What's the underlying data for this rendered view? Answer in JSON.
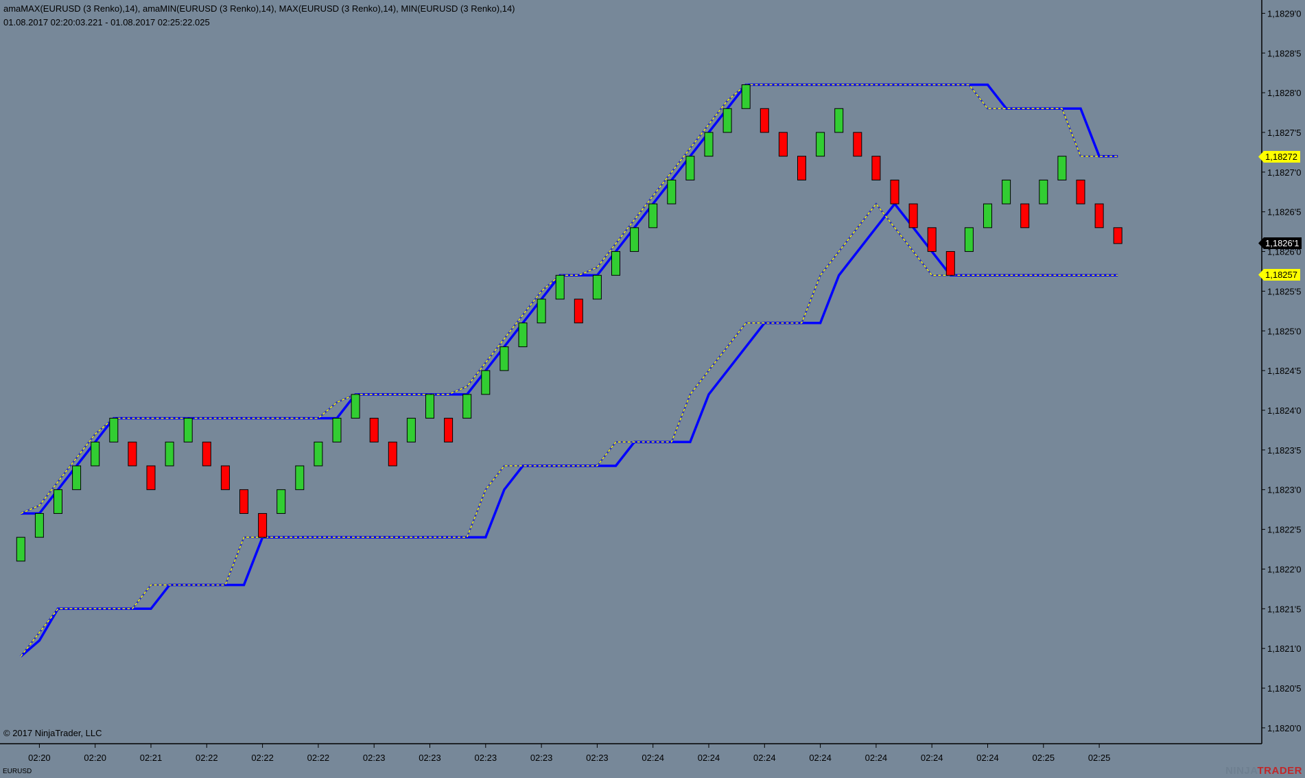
{
  "header": {
    "indicators": "amaMAX(EURUSD (3 Renko),14), amaMIN(EURUSD (3 Renko),14), MAX(EURUSD (3 Renko),14), MIN(EURUSD (3 Renko),14)",
    "range": "01.08.2017 02:20:03.221 - 01.08.2017 02:25:22.025"
  },
  "copyright": "© 2017 NinjaTrader, LLC",
  "instrument": "EURUSD",
  "logo": {
    "prefix": "NINJA",
    "suffix": "TRADER"
  },
  "colors": {
    "background": "#778899",
    "up": "#32CD32",
    "down": "#FF0000",
    "max_min": "#0000FF",
    "ama": "#FFFF00"
  },
  "price_tags": {
    "amaMax": "1,18272",
    "last": "1,1826'1",
    "amaMin": "1,18257"
  },
  "chart_data": {
    "type": "renko",
    "brick_size": 3e-05,
    "ylim": [
      1.18198,
      1.18292
    ],
    "y_ticks": [
      {
        "value": 1.1829,
        "label": "1,1829'0"
      },
      {
        "value": 1.18285,
        "label": "1,1828'5"
      },
      {
        "value": 1.1828,
        "label": "1,1828'0"
      },
      {
        "value": 1.18275,
        "label": "1,1827'5"
      },
      {
        "value": 1.1827,
        "label": "1,1827'0"
      },
      {
        "value": 1.18265,
        "label": "1,1826'5"
      },
      {
        "value": 1.1826,
        "label": "1,1826'0"
      },
      {
        "value": 1.18255,
        "label": "1,1825'5"
      },
      {
        "value": 1.1825,
        "label": "1,1825'0"
      },
      {
        "value": 1.18245,
        "label": "1,1824'5"
      },
      {
        "value": 1.1824,
        "label": "1,1824'0"
      },
      {
        "value": 1.18235,
        "label": "1,1823'5"
      },
      {
        "value": 1.1823,
        "label": "1,1823'0"
      },
      {
        "value": 1.18225,
        "label": "1,1822'5"
      },
      {
        "value": 1.1822,
        "label": "1,1822'0"
      },
      {
        "value": 1.18215,
        "label": "1,1821'5"
      },
      {
        "value": 1.1821,
        "label": "1,1821'0"
      },
      {
        "value": 1.18205,
        "label": "1,1820'5"
      },
      {
        "value": 1.182,
        "label": "1,1820'0"
      }
    ],
    "x_ticks": [
      {
        "bar": 1,
        "label": "02:20"
      },
      {
        "bar": 4,
        "label": "02:20"
      },
      {
        "bar": 7,
        "label": "02:21"
      },
      {
        "bar": 10,
        "label": "02:22"
      },
      {
        "bar": 13,
        "label": "02:22"
      },
      {
        "bar": 16,
        "label": "02:22"
      },
      {
        "bar": 19,
        "label": "02:23"
      },
      {
        "bar": 22,
        "label": "02:23"
      },
      {
        "bar": 25,
        "label": "02:23"
      },
      {
        "bar": 28,
        "label": "02:23"
      },
      {
        "bar": 31,
        "label": "02:23"
      },
      {
        "bar": 34,
        "label": "02:24"
      },
      {
        "bar": 37,
        "label": "02:24"
      },
      {
        "bar": 40,
        "label": "02:24"
      },
      {
        "bar": 43,
        "label": "02:24"
      },
      {
        "bar": 46,
        "label": "02:24"
      },
      {
        "bar": 49,
        "label": "02:24"
      },
      {
        "bar": 52,
        "label": "02:24"
      },
      {
        "bar": 55,
        "label": "02:25"
      },
      {
        "bar": 58,
        "label": "02:25"
      }
    ],
    "bricks": [
      [
        1.18221,
        1.18224
      ],
      [
        1.18224,
        1.18227
      ],
      [
        1.18227,
        1.1823
      ],
      [
        1.1823,
        1.18233
      ],
      [
        1.18233,
        1.18236
      ],
      [
        1.18236,
        1.18239
      ],
      [
        1.18236,
        1.18233
      ],
      [
        1.18233,
        1.1823
      ],
      [
        1.18233,
        1.18236
      ],
      [
        1.18236,
        1.18239
      ],
      [
        1.18236,
        1.18233
      ],
      [
        1.18233,
        1.1823
      ],
      [
        1.1823,
        1.18227
      ],
      [
        1.18227,
        1.18224
      ],
      [
        1.18227,
        1.1823
      ],
      [
        1.1823,
        1.18233
      ],
      [
        1.18233,
        1.18236
      ],
      [
        1.18236,
        1.18239
      ],
      [
        1.18239,
        1.18242
      ],
      [
        1.18239,
        1.18236
      ],
      [
        1.18236,
        1.18233
      ],
      [
        1.18236,
        1.18239
      ],
      [
        1.18239,
        1.18242
      ],
      [
        1.18239,
        1.18236
      ],
      [
        1.18239,
        1.18242
      ],
      [
        1.18242,
        1.18245
      ],
      [
        1.18245,
        1.18248
      ],
      [
        1.18248,
        1.18251
      ],
      [
        1.18251,
        1.18254
      ],
      [
        1.18254,
        1.18257
      ],
      [
        1.18254,
        1.18251
      ],
      [
        1.18254,
        1.18257
      ],
      [
        1.18257,
        1.1826
      ],
      [
        1.1826,
        1.18263
      ],
      [
        1.18263,
        1.18266
      ],
      [
        1.18266,
        1.18269
      ],
      [
        1.18269,
        1.18272
      ],
      [
        1.18272,
        1.18275
      ],
      [
        1.18275,
        1.18278
      ],
      [
        1.18278,
        1.18281
      ],
      [
        1.18278,
        1.18275
      ],
      [
        1.18275,
        1.18272
      ],
      [
        1.18272,
        1.18269
      ],
      [
        1.18272,
        1.18275
      ],
      [
        1.18275,
        1.18278
      ],
      [
        1.18275,
        1.18272
      ],
      [
        1.18272,
        1.18269
      ],
      [
        1.18269,
        1.18266
      ],
      [
        1.18266,
        1.18263
      ],
      [
        1.18263,
        1.1826
      ],
      [
        1.1826,
        1.18257
      ],
      [
        1.1826,
        1.18263
      ],
      [
        1.18263,
        1.18266
      ],
      [
        1.18266,
        1.18269
      ],
      [
        1.18266,
        1.18263
      ],
      [
        1.18266,
        1.18269
      ],
      [
        1.18269,
        1.18272
      ],
      [
        1.18269,
        1.18266
      ],
      [
        1.18266,
        1.18263
      ],
      [
        1.18263,
        1.18261
      ]
    ],
    "series": [
      {
        "name": "MAX(EURUSD (3 Renko),14)",
        "style": "solid",
        "values": [
          1.18227,
          1.18227,
          1.1823,
          1.18233,
          1.18236,
          1.18239,
          1.18239,
          1.18239,
          1.18239,
          1.18239,
          1.18239,
          1.18239,
          1.18239,
          1.18239,
          1.18239,
          1.18239,
          1.18239,
          1.18239,
          1.18242,
          1.18242,
          1.18242,
          1.18242,
          1.18242,
          1.18242,
          1.18242,
          1.18245,
          1.18248,
          1.18251,
          1.18254,
          1.18257,
          1.18257,
          1.18257,
          1.1826,
          1.18263,
          1.18266,
          1.18269,
          1.18272,
          1.18275,
          1.18278,
          1.18281,
          1.18281,
          1.18281,
          1.18281,
          1.18281,
          1.18281,
          1.18281,
          1.18281,
          1.18281,
          1.18281,
          1.18281,
          1.18281,
          1.18281,
          1.18281,
          1.18278,
          1.18278,
          1.18278,
          1.18278,
          1.18278,
          1.18272,
          1.18272
        ]
      },
      {
        "name": "amaMAX(EURUSD (3 Renko),14)",
        "style": "dashed",
        "values": [
          1.18227,
          1.18228,
          1.18231,
          1.18234,
          1.18237,
          1.18239,
          1.18239,
          1.18239,
          1.18239,
          1.18239,
          1.18239,
          1.18239,
          1.18239,
          1.18239,
          1.18239,
          1.18239,
          1.18239,
          1.18241,
          1.18242,
          1.18242,
          1.18242,
          1.18242,
          1.18242,
          1.18242,
          1.18243,
          1.18246,
          1.18249,
          1.18252,
          1.18255,
          1.18257,
          1.18257,
          1.18258,
          1.18261,
          1.18264,
          1.18267,
          1.1827,
          1.18273,
          1.18276,
          1.18279,
          1.18281,
          1.18281,
          1.18281,
          1.18281,
          1.18281,
          1.18281,
          1.18281,
          1.18281,
          1.18281,
          1.18281,
          1.18281,
          1.18281,
          1.18281,
          1.18278,
          1.18278,
          1.18278,
          1.18278,
          1.18278,
          1.18272,
          1.18272,
          1.18272
        ]
      },
      {
        "name": "MIN(EURUSD (3 Renko),14)",
        "style": "solid",
        "values": [
          1.18209,
          1.18211,
          1.18215,
          1.18215,
          1.18215,
          1.18215,
          1.18215,
          1.18215,
          1.18218,
          1.18218,
          1.18218,
          1.18218,
          1.18218,
          1.18224,
          1.18224,
          1.18224,
          1.18224,
          1.18224,
          1.18224,
          1.18224,
          1.18224,
          1.18224,
          1.18224,
          1.18224,
          1.18224,
          1.18224,
          1.1823,
          1.18233,
          1.18233,
          1.18233,
          1.18233,
          1.18233,
          1.18233,
          1.18236,
          1.18236,
          1.18236,
          1.18236,
          1.18242,
          1.18245,
          1.18248,
          1.18251,
          1.18251,
          1.18251,
          1.18251,
          1.18257,
          1.1826,
          1.18263,
          1.18266,
          1.18263,
          1.1826,
          1.18257,
          1.18257,
          1.18257,
          1.18257,
          1.18257,
          1.18257,
          1.18257,
          1.18257,
          1.18257,
          1.18257
        ]
      },
      {
        "name": "amaMIN(EURUSD (3 Renko),14)",
        "style": "dashed",
        "values": [
          1.18209,
          1.18212,
          1.18215,
          1.18215,
          1.18215,
          1.18215,
          1.18215,
          1.18218,
          1.18218,
          1.18218,
          1.18218,
          1.18218,
          1.18224,
          1.18224,
          1.18224,
          1.18224,
          1.18224,
          1.18224,
          1.18224,
          1.18224,
          1.18224,
          1.18224,
          1.18224,
          1.18224,
          1.18224,
          1.1823,
          1.18233,
          1.18233,
          1.18233,
          1.18233,
          1.18233,
          1.18233,
          1.18236,
          1.18236,
          1.18236,
          1.18236,
          1.18242,
          1.18245,
          1.18248,
          1.18251,
          1.18251,
          1.18251,
          1.18251,
          1.18257,
          1.1826,
          1.18263,
          1.18266,
          1.18263,
          1.1826,
          1.18257,
          1.18257,
          1.18257,
          1.18257,
          1.18257,
          1.18257,
          1.18257,
          1.18257,
          1.18257,
          1.18257,
          1.18257
        ]
      }
    ]
  }
}
